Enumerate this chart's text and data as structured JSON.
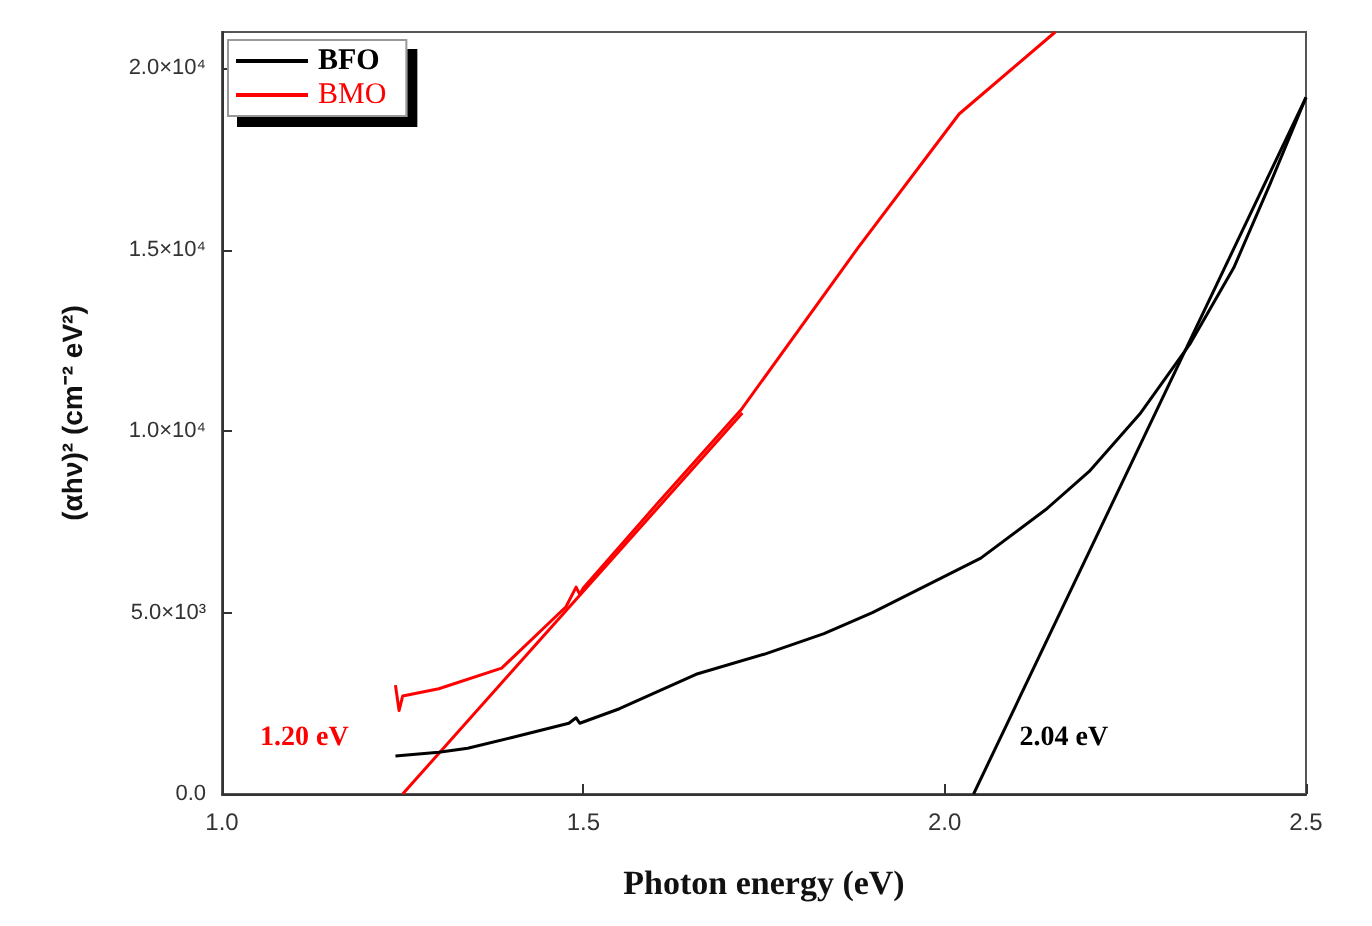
{
  "chart_data": {
    "type": "line",
    "xlabel": "Photon energy (eV)",
    "ylabel": "(αhν)² (cm⁻² eV²)",
    "xlim": [
      1.0,
      2.5
    ],
    "xticks": [
      {
        "value": 1.0,
        "label": "1.0"
      },
      {
        "value": 1.5,
        "label": "1.5"
      },
      {
        "value": 2.0,
        "label": "2.0"
      },
      {
        "value": 2.5,
        "label": "2.5"
      }
    ],
    "ylim": [
      0,
      21000
    ],
    "yticks": [
      {
        "value": 0,
        "label": "0.0"
      },
      {
        "value": 5000,
        "label": "5.0×10³"
      },
      {
        "value": 10000,
        "label": "1.0×10⁴"
      },
      {
        "value": 15000,
        "label": "1.5×10⁴"
      },
      {
        "value": 20000,
        "label": "2.0×10⁴"
      }
    ],
    "grid": false,
    "legend": "top left",
    "marker": "none",
    "line_style": "solid",
    "series": [
      {
        "name": "BFO",
        "color": "#000000",
        "x": [
          1.24,
          1.3,
          1.34,
          1.4,
          1.48,
          1.49,
          1.495,
          1.55,
          1.656,
          1.75,
          1.833,
          1.9,
          1.995,
          2.05,
          2.14,
          2.2,
          2.27,
          2.34,
          2.4,
          2.45,
          2.5
        ],
        "values": [
          1050,
          1150,
          1260,
          1550,
          1950,
          2100,
          1950,
          2350,
          3300,
          3850,
          4420,
          5000,
          5950,
          6500,
          7840,
          8890,
          10470,
          12420,
          14500,
          16800,
          19200
        ]
      },
      {
        "name": "BMO",
        "color": "#ff0000",
        "x": [
          1.24,
          1.245,
          1.25,
          1.3,
          1.387,
          1.476,
          1.49,
          1.495,
          1.5,
          1.6,
          1.718,
          1.88,
          2.02,
          2.153
        ],
        "values": [
          3000,
          2300,
          2700,
          2900,
          3470,
          5160,
          5700,
          5500,
          5680,
          7950,
          10580,
          15050,
          18740,
          21000
        ]
      },
      {
        "type": "line",
        "color": "#000000",
        "x": [
          2.04,
          2.5
        ],
        "values": [
          0,
          19200
        ]
      },
      {
        "type": "line",
        "color": "#ff0000",
        "x": [
          1.25,
          1.72
        ],
        "values": [
          0,
          10500
        ]
      }
    ],
    "annotations": [
      "2.04 eV",
      "1.20 eV"
    ]
  }
}
